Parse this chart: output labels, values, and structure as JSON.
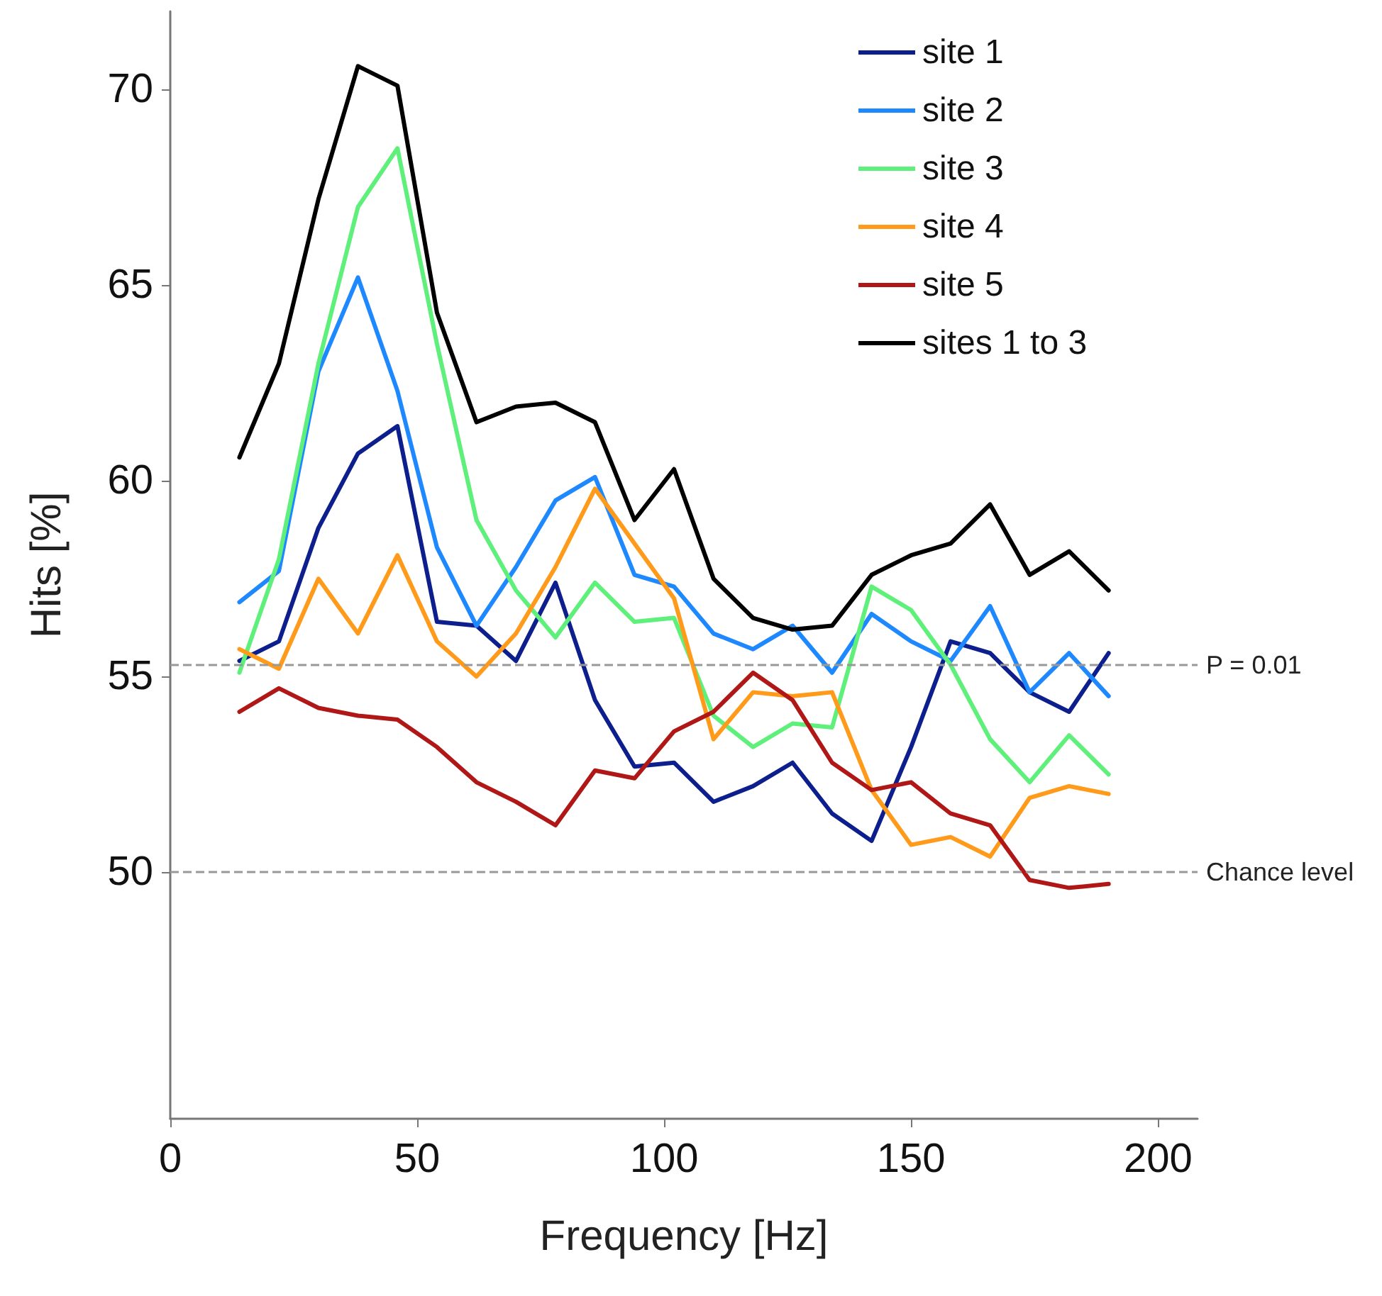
{
  "chart_data": {
    "type": "line",
    "xlabel": "Frequency [Hz]",
    "ylabel": "Hits [%]",
    "x": [
      14,
      22,
      30,
      38,
      46,
      54,
      62,
      70,
      78,
      86,
      94,
      102,
      110,
      118,
      126,
      134,
      142,
      150,
      158,
      166,
      174,
      182,
      190
    ],
    "xlim": [
      0,
      208
    ],
    "xticks": [
      0,
      50,
      100,
      150,
      200
    ],
    "ylim": [
      43.7,
      72
    ],
    "yticks": [
      50,
      55,
      60,
      65,
      70
    ],
    "grid": false,
    "legend": "top right",
    "marker": "none",
    "line_style": "solid",
    "series": [
      {
        "name": "site 1",
        "color": "#0d1f8c",
        "values": [
          55.4,
          55.9,
          58.8,
          60.7,
          61.4,
          56.4,
          56.3,
          55.4,
          57.4,
          54.4,
          52.7,
          52.8,
          51.8,
          52.2,
          52.8,
          51.5,
          50.8,
          53.2,
          55.9,
          55.6,
          54.6,
          54.1,
          55.6
        ]
      },
      {
        "name": "site 2",
        "color": "#1e88ff",
        "values": [
          56.9,
          57.7,
          62.8,
          65.2,
          62.3,
          58.3,
          56.3,
          57.8,
          59.5,
          60.1,
          57.6,
          57.3,
          56.1,
          55.7,
          56.3,
          55.1,
          56.6,
          55.9,
          55.4,
          56.8,
          54.6,
          55.6,
          54.5
        ]
      },
      {
        "name": "site 3",
        "color": "#5ef07a",
        "values": [
          55.1,
          58.0,
          63.0,
          67.0,
          68.5,
          63.5,
          59.0,
          57.2,
          56.0,
          57.4,
          56.4,
          56.5,
          54.0,
          53.2,
          53.8,
          53.7,
          57.3,
          56.7,
          55.3,
          53.4,
          52.3,
          53.5,
          52.5
        ]
      },
      {
        "name": "site 4",
        "color": "#ff9a1a",
        "values": [
          55.7,
          55.2,
          57.5,
          56.1,
          58.1,
          55.9,
          55.0,
          56.1,
          57.8,
          59.8,
          58.4,
          57.0,
          53.4,
          54.6,
          54.5,
          54.6,
          52.1,
          50.7,
          50.9,
          50.4,
          51.9,
          52.2,
          52.0
        ]
      },
      {
        "name": "site 5",
        "color": "#b01818",
        "values": [
          54.1,
          54.7,
          54.2,
          54.0,
          53.9,
          53.2,
          52.3,
          51.8,
          51.2,
          52.6,
          52.4,
          53.6,
          54.1,
          55.1,
          54.4,
          52.8,
          52.1,
          52.3,
          51.5,
          51.2,
          49.8,
          49.6,
          49.7
        ]
      },
      {
        "name": "sites 1 to 3",
        "color": "#000000",
        "values": [
          60.6,
          63.0,
          67.2,
          70.6,
          70.1,
          64.3,
          61.5,
          61.9,
          62.0,
          61.5,
          59.0,
          60.3,
          57.5,
          56.5,
          56.2,
          56.3,
          57.6,
          58.1,
          58.4,
          59.4,
          57.6,
          58.2,
          57.2
        ]
      }
    ],
    "annotations": [
      "P = 0.01"
    ],
    "ref_lines": [
      {
        "axis": "y",
        "value": 55.3,
        "color": "#999999",
        "line_style": "dashed"
      },
      {
        "axis": "y",
        "value": 50,
        "label": "Chance level",
        "color": "#999999",
        "line_style": "dashed"
      }
    ]
  }
}
